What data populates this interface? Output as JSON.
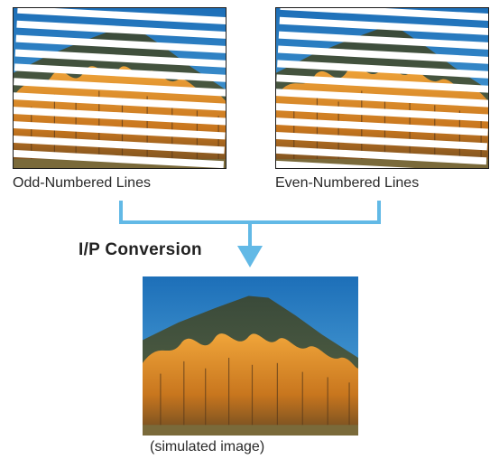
{
  "labels": {
    "odd": "Odd-Numbered Lines",
    "even": "Even-Numbered Lines",
    "conversion": "I/P Conversion",
    "caption": "(simulated image)"
  },
  "colors": {
    "arrow": "#62b9e6",
    "interlace_gap": "#ffffff",
    "sky": "#2a83c6",
    "mountain": "#4a5a3e",
    "foliage": "#d8902e"
  },
  "icons": {
    "flow": "merge-arrow-icon"
  }
}
